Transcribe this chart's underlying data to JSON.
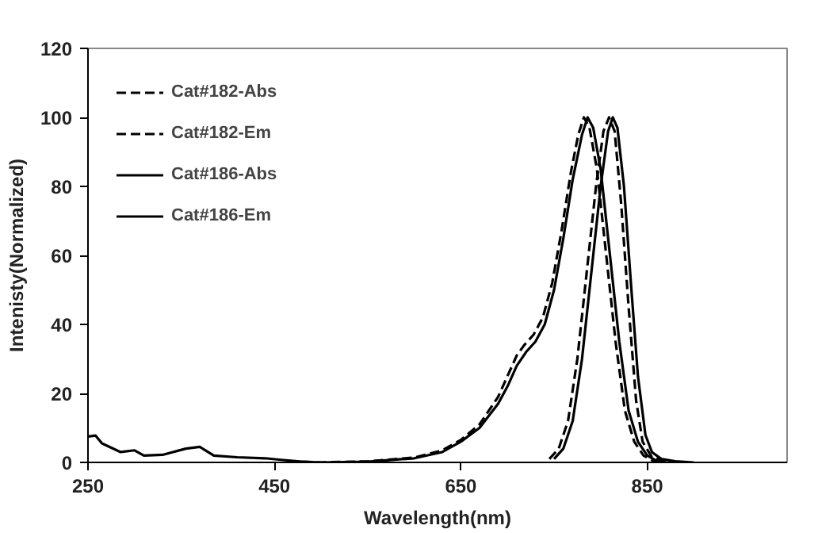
{
  "chart_data": {
    "type": "line",
    "xlabel": "Wavelength(nm)",
    "ylabel": "Intenisty(Normalized)",
    "xlim": [
      250,
      1000
    ],
    "xticks": [
      250,
      450,
      650,
      850
    ],
    "ylim": [
      0,
      120
    ],
    "yticks": [
      0,
      20,
      40,
      60,
      80,
      100,
      120
    ],
    "grid": false,
    "legend": "top left",
    "marker": "none",
    "series": [
      {
        "name": "Cat#182-Abs",
        "color": "#000000",
        "line_style": "dashed",
        "x": [
          480,
          500,
          550,
          600,
          630,
          650,
          670,
          690,
          700,
          710,
          718,
          728,
          738,
          748,
          758,
          768,
          776,
          782,
          788,
          796,
          806,
          816,
          826,
          836,
          846,
          856,
          866
        ],
        "values": [
          0.2,
          0,
          0.3,
          1.4,
          3.5,
          6.5,
          11,
          19,
          25,
          31,
          34,
          37,
          42,
          52,
          67,
          84,
          95,
          100,
          97,
          85,
          60,
          35,
          15,
          6,
          2,
          0.5,
          0
        ]
      },
      {
        "name": "Cat#182-Em",
        "color": "#000000",
        "line_style": "dashed",
        "x": [
          745,
          755,
          765,
          775,
          785,
          795,
          803,
          809,
          815,
          822,
          830,
          838,
          845,
          855,
          870,
          890
        ],
        "values": [
          1,
          4,
          12,
          30,
          55,
          80,
          96,
          100,
          96,
          75,
          45,
          18,
          6,
          1.5,
          0.3,
          0
        ]
      },
      {
        "name": "Cat#186-Abs",
        "color": "#000000",
        "line_style": "solid",
        "x": [
          250,
          258,
          265,
          285,
          300,
          310,
          330,
          355,
          370,
          385,
          410,
          440,
          455,
          480,
          500,
          550,
          600,
          630,
          650,
          670,
          690,
          700,
          710,
          720,
          730,
          740,
          750,
          760,
          770,
          780,
          786,
          792,
          800,
          810,
          820,
          830,
          840,
          850,
          860,
          870
        ],
        "values": [
          7.5,
          7.8,
          5.5,
          3,
          3.5,
          2,
          2.2,
          4,
          4.5,
          2,
          1.5,
          1.2,
          0.8,
          0.2,
          0,
          0.2,
          1.2,
          3,
          6,
          10,
          17,
          22,
          28,
          32,
          35,
          40,
          50,
          65,
          82,
          95,
          100,
          97,
          85,
          60,
          35,
          15,
          6,
          2,
          0.5,
          0
        ]
      },
      {
        "name": "Cat#186-Em",
        "color": "#000000",
        "line_style": "solid",
        "x": [
          750,
          760,
          770,
          780,
          790,
          800,
          808,
          813,
          818,
          825,
          833,
          840,
          848,
          855,
          865,
          880,
          900
        ],
        "values": [
          1,
          4,
          12,
          30,
          55,
          80,
          96,
          100,
          97,
          80,
          50,
          25,
          8,
          3,
          1,
          0.3,
          0
        ]
      }
    ]
  }
}
